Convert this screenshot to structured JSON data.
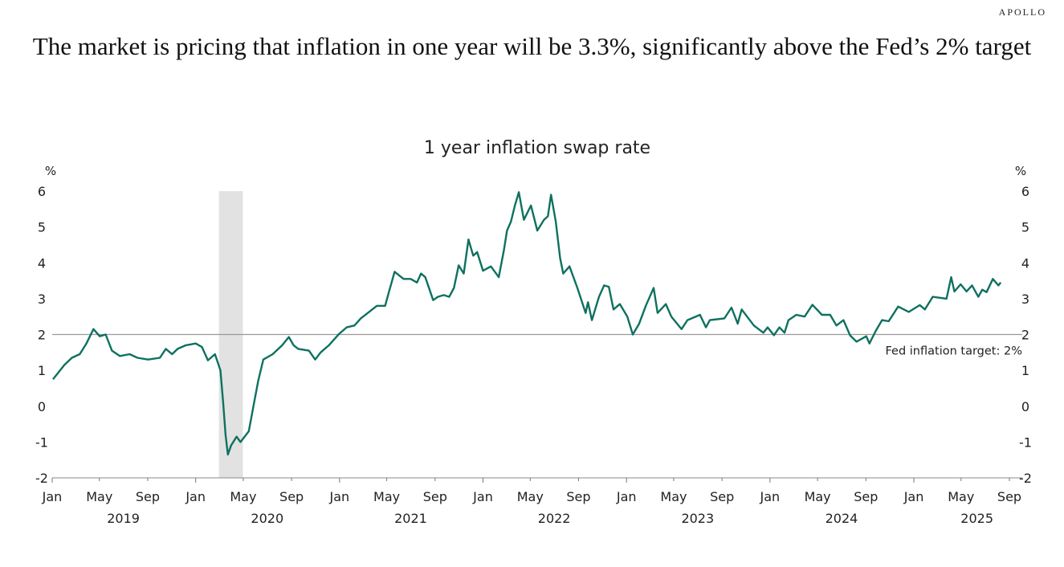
{
  "brand": "APOLLO",
  "headline": "The market is pricing that inflation in one year will be 3.3%, significantly above the Fed’s 2% target",
  "chart_data": {
    "type": "line",
    "title": "1 year inflation swap rate",
    "ylabel_left": "%",
    "ylabel_right": "%",
    "ylim": [
      -2,
      6
    ],
    "yticks": [
      -2,
      -1,
      0,
      1,
      2,
      3,
      4,
      5,
      6
    ],
    "xlim": [
      "2019-01-01",
      "2025-09-30"
    ],
    "xticks": [
      {
        "date": "2019-01-01",
        "label": "Jan"
      },
      {
        "date": "2019-05-01",
        "label": "May"
      },
      {
        "date": "2019-09-01",
        "label": "Sep"
      },
      {
        "date": "2020-01-01",
        "label": "Jan"
      },
      {
        "date": "2020-05-01",
        "label": "May"
      },
      {
        "date": "2020-09-01",
        "label": "Sep"
      },
      {
        "date": "2021-01-01",
        "label": "Jan"
      },
      {
        "date": "2021-05-01",
        "label": "May"
      },
      {
        "date": "2021-09-01",
        "label": "Sep"
      },
      {
        "date": "2022-01-01",
        "label": "Jan"
      },
      {
        "date": "2022-05-01",
        "label": "May"
      },
      {
        "date": "2022-09-01",
        "label": "Sep"
      },
      {
        "date": "2023-01-01",
        "label": "Jan"
      },
      {
        "date": "2023-05-01",
        "label": "May"
      },
      {
        "date": "2023-09-01",
        "label": "Sep"
      },
      {
        "date": "2024-01-01",
        "label": "Jan"
      },
      {
        "date": "2024-05-01",
        "label": "May"
      },
      {
        "date": "2024-09-01",
        "label": "Sep"
      },
      {
        "date": "2025-01-01",
        "label": "Jan"
      },
      {
        "date": "2025-05-01",
        "label": "May"
      },
      {
        "date": "2025-09-01",
        "label": "Sep"
      }
    ],
    "year_labels": [
      {
        "year": "2019",
        "center": "2019-07-01"
      },
      {
        "year": "2020",
        "center": "2020-07-01"
      },
      {
        "year": "2021",
        "center": "2021-07-01"
      },
      {
        "year": "2022",
        "center": "2022-07-01"
      },
      {
        "year": "2023",
        "center": "2023-07-01"
      },
      {
        "year": "2024",
        "center": "2024-07-01"
      },
      {
        "year": "2025",
        "center": "2025-07-01"
      }
    ],
    "grid": false,
    "line_color": "#0e7160",
    "recession_shading": {
      "start": "2020-02-29",
      "end": "2020-04-30",
      "color": "#e2e2e2"
    },
    "reference_line": {
      "value": 2,
      "label": "Fed inflation target: 2%",
      "color": "#999999"
    },
    "series": [
      {
        "points": [
          [
            "2019-01-03",
            0.75
          ],
          [
            "2019-02-01",
            1.15
          ],
          [
            "2019-02-20",
            1.35
          ],
          [
            "2019-03-12",
            1.45
          ],
          [
            "2019-03-29",
            1.75
          ],
          [
            "2019-04-16",
            2.15
          ],
          [
            "2019-05-02",
            1.95
          ],
          [
            "2019-05-17",
            2.0
          ],
          [
            "2019-06-02",
            1.55
          ],
          [
            "2019-06-22",
            1.4
          ],
          [
            "2019-07-17",
            1.45
          ],
          [
            "2019-08-06",
            1.35
          ],
          [
            "2019-09-02",
            1.3
          ],
          [
            "2019-10-02",
            1.35
          ],
          [
            "2019-10-17",
            1.6
          ],
          [
            "2019-11-02",
            1.45
          ],
          [
            "2019-11-16",
            1.6
          ],
          [
            "2019-12-07",
            1.7
          ],
          [
            "2020-01-01",
            1.75
          ],
          [
            "2020-01-17",
            1.65
          ],
          [
            "2020-02-01",
            1.28
          ],
          [
            "2020-02-19",
            1.45
          ],
          [
            "2020-03-04",
            1.0
          ],
          [
            "2020-03-11",
            0.1
          ],
          [
            "2020-03-17",
            -0.8
          ],
          [
            "2020-03-23",
            -1.35
          ],
          [
            "2020-03-31",
            -1.1
          ],
          [
            "2020-04-14",
            -0.85
          ],
          [
            "2020-04-24",
            -1.0
          ],
          [
            "2020-05-15",
            -0.7
          ],
          [
            "2020-05-27",
            0.0
          ],
          [
            "2020-06-08",
            0.7
          ],
          [
            "2020-06-21",
            1.3
          ],
          [
            "2020-07-15",
            1.45
          ],
          [
            "2020-08-08",
            1.7
          ],
          [
            "2020-08-25",
            1.93
          ],
          [
            "2020-09-06",
            1.7
          ],
          [
            "2020-09-18",
            1.6
          ],
          [
            "2020-10-15",
            1.55
          ],
          [
            "2020-10-31",
            1.3
          ],
          [
            "2020-11-14",
            1.5
          ],
          [
            "2020-12-05",
            1.7
          ],
          [
            "2020-12-31",
            2.02
          ],
          [
            "2021-01-19",
            2.2
          ],
          [
            "2021-02-08",
            2.25
          ],
          [
            "2021-02-24",
            2.45
          ],
          [
            "2021-03-17",
            2.63
          ],
          [
            "2021-04-06",
            2.8
          ],
          [
            "2021-04-27",
            2.8
          ],
          [
            "2021-05-07",
            3.2
          ],
          [
            "2021-05-21",
            3.75
          ],
          [
            "2021-06-13",
            3.55
          ],
          [
            "2021-07-01",
            3.55
          ],
          [
            "2021-07-17",
            3.45
          ],
          [
            "2021-07-27",
            3.7
          ],
          [
            "2021-08-07",
            3.6
          ],
          [
            "2021-08-27",
            2.96
          ],
          [
            "2021-09-08",
            3.05
          ],
          [
            "2021-09-23",
            3.1
          ],
          [
            "2021-10-07",
            3.05
          ],
          [
            "2021-10-19",
            3.3
          ],
          [
            "2021-10-31",
            3.93
          ],
          [
            "2021-11-13",
            3.7
          ],
          [
            "2021-11-25",
            4.65
          ],
          [
            "2021-12-07",
            4.2
          ],
          [
            "2021-12-17",
            4.3
          ],
          [
            "2022-01-01",
            3.78
          ],
          [
            "2022-01-21",
            3.9
          ],
          [
            "2022-02-10",
            3.6
          ],
          [
            "2022-02-23",
            4.35
          ],
          [
            "2022-03-03",
            4.9
          ],
          [
            "2022-03-13",
            5.15
          ],
          [
            "2022-03-23",
            5.6
          ],
          [
            "2022-04-02",
            5.97
          ],
          [
            "2022-04-15",
            5.2
          ],
          [
            "2022-05-03",
            5.6
          ],
          [
            "2022-05-19",
            4.9
          ],
          [
            "2022-06-05",
            5.2
          ],
          [
            "2022-06-15",
            5.3
          ],
          [
            "2022-06-23",
            5.9
          ],
          [
            "2022-07-05",
            5.15
          ],
          [
            "2022-07-16",
            4.13
          ],
          [
            "2022-07-24",
            3.7
          ],
          [
            "2022-08-09",
            3.9
          ],
          [
            "2022-08-29",
            3.3
          ],
          [
            "2022-09-19",
            2.6
          ],
          [
            "2022-09-25",
            2.9
          ],
          [
            "2022-10-05",
            2.4
          ],
          [
            "2022-10-23",
            3.05
          ],
          [
            "2022-11-05",
            3.37
          ],
          [
            "2022-11-17",
            3.33
          ],
          [
            "2022-11-29",
            2.7
          ],
          [
            "2022-12-15",
            2.85
          ],
          [
            "2023-01-03",
            2.5
          ],
          [
            "2023-01-17",
            2.0
          ],
          [
            "2023-02-02",
            2.3
          ],
          [
            "2023-02-19",
            2.8
          ],
          [
            "2023-03-11",
            3.3
          ],
          [
            "2023-03-21",
            2.6
          ],
          [
            "2023-04-11",
            2.85
          ],
          [
            "2023-04-25",
            2.5
          ],
          [
            "2023-05-21",
            2.15
          ],
          [
            "2023-06-05",
            2.4
          ],
          [
            "2023-07-07",
            2.55
          ],
          [
            "2023-07-22",
            2.2
          ],
          [
            "2023-08-01",
            2.4
          ],
          [
            "2023-09-07",
            2.45
          ],
          [
            "2023-09-25",
            2.75
          ],
          [
            "2023-10-11",
            2.3
          ],
          [
            "2023-10-21",
            2.7
          ],
          [
            "2023-11-21",
            2.25
          ],
          [
            "2023-12-15",
            2.05
          ],
          [
            "2023-12-26",
            2.2
          ],
          [
            "2024-01-11",
            1.98
          ],
          [
            "2024-01-25",
            2.2
          ],
          [
            "2024-02-07",
            2.05
          ],
          [
            "2024-02-17",
            2.4
          ],
          [
            "2024-03-08",
            2.55
          ],
          [
            "2024-03-29",
            2.5
          ],
          [
            "2024-04-18",
            2.83
          ],
          [
            "2024-05-12",
            2.55
          ],
          [
            "2024-06-02",
            2.55
          ],
          [
            "2024-06-18",
            2.25
          ],
          [
            "2024-07-06",
            2.4
          ],
          [
            "2024-07-23",
            1.97
          ],
          [
            "2024-08-08",
            1.8
          ],
          [
            "2024-09-02",
            1.95
          ],
          [
            "2024-09-10",
            1.75
          ],
          [
            "2024-09-26",
            2.1
          ],
          [
            "2024-10-12",
            2.4
          ],
          [
            "2024-10-29",
            2.37
          ],
          [
            "2024-11-22",
            2.78
          ],
          [
            "2024-12-19",
            2.63
          ],
          [
            "2025-01-16",
            2.82
          ],
          [
            "2025-01-29",
            2.7
          ],
          [
            "2025-02-18",
            3.05
          ],
          [
            "2025-03-25",
            3.0
          ],
          [
            "2025-04-06",
            3.6
          ],
          [
            "2025-04-14",
            3.2
          ],
          [
            "2025-04-30",
            3.4
          ],
          [
            "2025-05-15",
            3.2
          ],
          [
            "2025-05-29",
            3.37
          ],
          [
            "2025-06-14",
            3.05
          ],
          [
            "2025-06-24",
            3.25
          ],
          [
            "2025-07-05",
            3.18
          ],
          [
            "2025-07-21",
            3.55
          ],
          [
            "2025-08-04",
            3.37
          ],
          [
            "2025-08-10",
            3.45
          ]
        ]
      }
    ]
  }
}
